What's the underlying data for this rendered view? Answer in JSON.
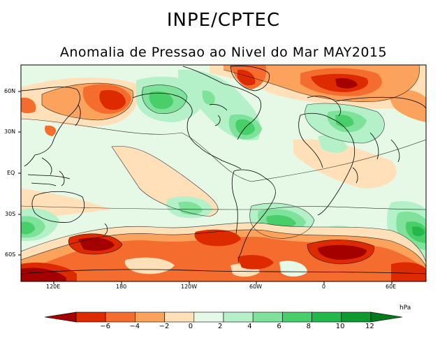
{
  "title": "INPE/CPTEC",
  "subtitle": "Anomalia de Pressao ao Nivel do Mar MAY2015",
  "latitude_labels": [
    "60N",
    "30N",
    "EQ",
    "30S",
    "60S"
  ],
  "longitude_labels": [
    "120E",
    "180",
    "120W",
    "60W",
    "0",
    "60E"
  ],
  "colorbar": {
    "unit": "hPa",
    "ticks": [
      "−6",
      "−4",
      "−2",
      "0",
      "2",
      "4",
      "6",
      "8",
      "10",
      "12"
    ],
    "colors": [
      "#a50000",
      "#dd2a00",
      "#f46d2e",
      "#fba35c",
      "#ffe0b8",
      "#e6f8e6",
      "#b4f0c8",
      "#7ee29a",
      "#49cf6a",
      "#22b84a",
      "#0e9a2e",
      "#057a1c"
    ]
  }
}
